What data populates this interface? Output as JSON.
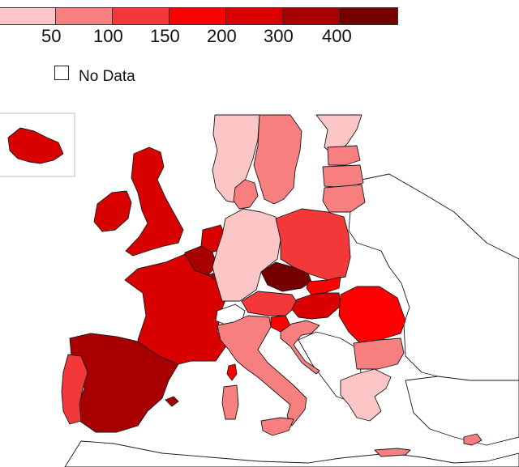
{
  "legend": {
    "bins": [
      {
        "color": "#fcc6c6"
      },
      {
        "color": "#f77f7f"
      },
      {
        "color": "#f23838"
      },
      {
        "color": "#ff0000"
      },
      {
        "color": "#d90000"
      },
      {
        "color": "#a80000"
      },
      {
        "color": "#740000"
      }
    ],
    "ticks": [
      "50",
      "100",
      "150",
      "200",
      "300",
      "400"
    ],
    "no_data_label": "No Data"
  },
  "map": {
    "regions": [
      {
        "name": "iceland",
        "bin": 4
      },
      {
        "name": "ireland",
        "bin": 4
      },
      {
        "name": "united-kingdom",
        "bin": 4
      },
      {
        "name": "norway",
        "bin": 0
      },
      {
        "name": "sweden",
        "bin": 1
      },
      {
        "name": "finland",
        "bin": 0
      },
      {
        "name": "denmark",
        "bin": 1
      },
      {
        "name": "estonia",
        "bin": 1
      },
      {
        "name": "latvia",
        "bin": 1
      },
      {
        "name": "lithuania",
        "bin": 1
      },
      {
        "name": "netherlands",
        "bin": 4
      },
      {
        "name": "belgium",
        "bin": 5
      },
      {
        "name": "luxembourg",
        "bin": 5
      },
      {
        "name": "france",
        "bin": 4
      },
      {
        "name": "germany",
        "bin": 0
      },
      {
        "name": "poland",
        "bin": 2
      },
      {
        "name": "czechia",
        "bin": 6
      },
      {
        "name": "slovakia",
        "bin": 3
      },
      {
        "name": "austria",
        "bin": 2
      },
      {
        "name": "switzerland",
        "bin": -1
      },
      {
        "name": "hungary",
        "bin": 4
      },
      {
        "name": "slovenia",
        "bin": 3
      },
      {
        "name": "croatia",
        "bin": 1
      },
      {
        "name": "romania",
        "bin": 3
      },
      {
        "name": "bulgaria",
        "bin": 1
      },
      {
        "name": "greece",
        "bin": 0
      },
      {
        "name": "italy",
        "bin": 1
      },
      {
        "name": "corsica",
        "bin": 3
      },
      {
        "name": "sardinia",
        "bin": 1
      },
      {
        "name": "sicily",
        "bin": 1
      },
      {
        "name": "spain",
        "bin": 5
      },
      {
        "name": "portugal",
        "bin": 2
      },
      {
        "name": "balearic-islands",
        "bin": 5
      },
      {
        "name": "cyprus",
        "bin": 1
      },
      {
        "name": "crete",
        "bin": 1
      }
    ]
  }
}
